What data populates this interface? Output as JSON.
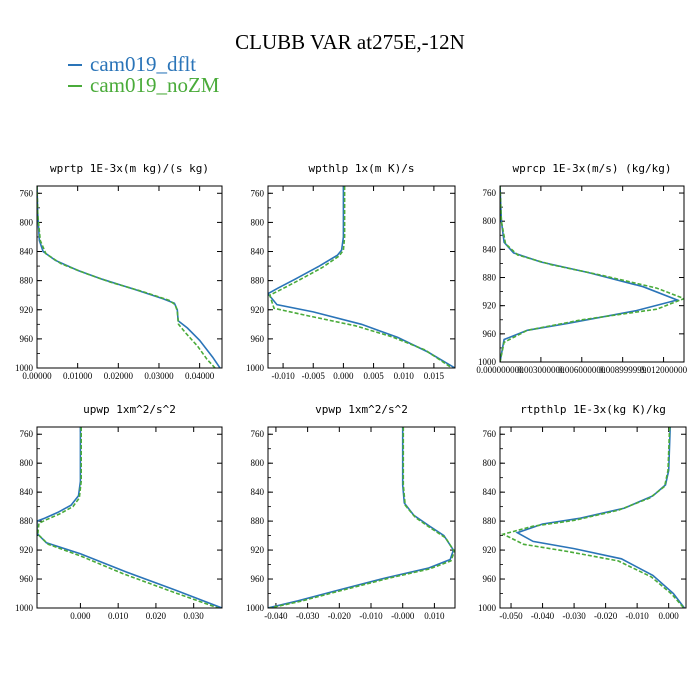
{
  "title": "CLUBB VAR at275E,-12N",
  "colors": {
    "dflt": "#2a74b8",
    "noZM": "#4aab3a"
  },
  "legend": [
    {
      "label": "cam019_dflt",
      "color": "#2a74b8"
    },
    {
      "label": "cam019_noZM",
      "color": "#4aab3a"
    }
  ],
  "chart_data": [
    {
      "type": "line",
      "title": "wprtp  1E-3x(m kg)/(s kg)",
      "xlim": [
        0,
        0.0455
      ],
      "ylim": [
        1000,
        750
      ],
      "yticks": [
        760,
        800,
        840,
        880,
        920,
        960,
        1000
      ],
      "xticks": [
        0,
        0.01,
        0.02,
        0.03,
        0.04
      ],
      "xticklabels": [
        "0.00000",
        "0.01000",
        "0.02000",
        "0.03000",
        "0.04000"
      ],
      "series": [
        {
          "name": "cam019_dflt",
          "style": "solid",
          "x": [
            0,
            0.0002,
            0.0006,
            0.0015,
            0.0045,
            0.01,
            0.016,
            0.024,
            0.031,
            0.0338,
            0.0345,
            0.0347,
            0.037,
            0.04,
            0.0432,
            0.045
          ],
          "y": [
            750,
            790,
            825,
            840,
            852,
            866,
            878,
            892,
            905,
            911,
            920,
            935,
            945,
            962,
            985,
            1000
          ]
        },
        {
          "name": "cam019_noZM",
          "style": "dashed",
          "x": [
            0,
            0.0002,
            0.0008,
            0.0022,
            0.006,
            0.012,
            0.018,
            0.026,
            0.0325,
            0.034,
            0.0345,
            0.0348,
            0.0366,
            0.0395,
            0.0418,
            0.0438
          ],
          "y": [
            750,
            790,
            825,
            843,
            857,
            870,
            882,
            895,
            907,
            913,
            922,
            940,
            952,
            970,
            988,
            1000
          ]
        }
      ]
    },
    {
      "type": "line",
      "title": "wpthlp  1x(m K)/s",
      "xlim": [
        -0.0125,
        0.0185
      ],
      "ylim": [
        1000,
        750
      ],
      "yticks": [
        760,
        800,
        840,
        880,
        920,
        960,
        1000
      ],
      "xticks": [
        -0.01,
        -0.005,
        0,
        0.005,
        0.01,
        0.015
      ],
      "xticklabels": [
        "-0.010",
        "-0.005",
        "0.000",
        "0.005",
        "0.010",
        "0.015"
      ],
      "series": [
        {
          "name": "cam019_dflt",
          "style": "solid",
          "x": [
            0,
            0,
            -0.0003,
            -0.001,
            -0.004,
            -0.008,
            -0.0108,
            -0.0125,
            -0.011,
            -0.005,
            0.003,
            0.009,
            0.014,
            0.0185
          ],
          "y": [
            750,
            820,
            838,
            845,
            860,
            878,
            890,
            898,
            913,
            923,
            940,
            958,
            978,
            1000
          ]
        },
        {
          "name": "cam019_noZM",
          "style": "dashed",
          "x": [
            0.0002,
            0.0002,
            0.0,
            -0.0007,
            -0.0035,
            -0.0075,
            -0.0103,
            -0.0122,
            -0.0115,
            -0.006,
            0.002,
            0.008,
            0.0135,
            0.018
          ],
          "y": [
            750,
            820,
            838,
            846,
            862,
            880,
            892,
            900,
            918,
            928,
            942,
            957,
            975,
            1000
          ]
        }
      ]
    },
    {
      "type": "line",
      "title": "wprcp  1E-3x(m/s) (kg/kg)",
      "xlim": [
        0,
        0.0135
      ],
      "ylim": [
        1000,
        750
      ],
      "yticks": [
        760,
        800,
        840,
        880,
        920,
        960,
        1000
      ],
      "xticks": [
        0,
        0.003,
        0.006,
        0.009,
        0.012
      ],
      "xticklabels": [
        "0.000000000",
        "0.003000000",
        "0.006000000",
        "0.008999999",
        "0.012000000"
      ],
      "series": [
        {
          "name": "cam019_dflt",
          "style": "solid",
          "x": [
            0,
            0.0001,
            0.0003,
            0.001,
            0.003,
            0.0065,
            0.0105,
            0.013,
            0.01,
            0.005,
            0.002,
            0.0003,
            0
          ],
          "y": [
            750,
            800,
            830,
            845,
            858,
            873,
            893,
            912,
            927,
            945,
            955,
            968,
            1000
          ]
        },
        {
          "name": "cam019_noZM",
          "style": "dashed",
          "x": [
            0,
            0.0001,
            0.0004,
            0.0013,
            0.0038,
            0.0075,
            0.0115,
            0.0135,
            0.0115,
            0.006,
            0.002,
            0.0003,
            0
          ],
          "y": [
            750,
            800,
            832,
            848,
            862,
            877,
            895,
            910,
            925,
            940,
            955,
            972,
            1000
          ]
        }
      ]
    },
    {
      "type": "line",
      "title": "upwp  1xm^2/s^2",
      "xlim": [
        -0.0115,
        0.0375
      ],
      "ylim": [
        1000,
        750
      ],
      "yticks": [
        760,
        800,
        840,
        880,
        920,
        960,
        1000
      ],
      "xticks": [
        0,
        0.01,
        0.02,
        0.03
      ],
      "xticklabels": [
        "0.000",
        "0.010",
        "0.020",
        "0.030"
      ],
      "series": [
        {
          "name": "cam019_dflt",
          "style": "solid",
          "x": [
            0,
            0,
            -0.0005,
            -0.0025,
            -0.006,
            -0.0095,
            -0.0115,
            -0.0115,
            -0.009,
            0.0,
            0.012,
            0.025,
            0.0375
          ],
          "y": [
            750,
            825,
            845,
            858,
            868,
            876,
            880,
            897,
            910,
            925,
            950,
            975,
            1000
          ]
        },
        {
          "name": "cam019_noZM",
          "style": "dashed",
          "x": [
            0.0002,
            0.0002,
            -0.0003,
            -0.002,
            -0.0055,
            -0.009,
            -0.011,
            -0.0113,
            -0.0085,
            0.0,
            0.0115,
            0.024,
            0.0365
          ],
          "y": [
            750,
            825,
            848,
            860,
            870,
            878,
            883,
            898,
            912,
            928,
            953,
            977,
            1000
          ]
        }
      ]
    },
    {
      "type": "line",
      "title": "vpwp  1xm^2/s^2",
      "xlim": [
        -0.0425,
        0.0165
      ],
      "ylim": [
        1000,
        750
      ],
      "yticks": [
        760,
        800,
        840,
        880,
        920,
        960,
        1000
      ],
      "xticks": [
        -0.04,
        -0.03,
        -0.02,
        -0.01,
        0,
        0.01
      ],
      "xticklabels": [
        "-0.040",
        "-0.030",
        "-0.020",
        "-0.010",
        "-0.000",
        "0.010"
      ],
      "series": [
        {
          "name": "cam019_dflt",
          "style": "solid",
          "x": [
            0,
            0,
            0.0005,
            0.0035,
            0.0085,
            0.013,
            0.016,
            0.015,
            0.008,
            -0.005,
            -0.02,
            -0.033,
            -0.0425
          ],
          "y": [
            750,
            830,
            855,
            872,
            887,
            900,
            920,
            933,
            945,
            958,
            975,
            990,
            1000
          ]
        },
        {
          "name": "cam019_noZM",
          "style": "dashed",
          "x": [
            0.0002,
            0.0002,
            0.0008,
            0.004,
            0.009,
            0.0135,
            0.0163,
            0.0152,
            0.0085,
            -0.0045,
            -0.0195,
            -0.0325,
            -0.042
          ],
          "y": [
            750,
            830,
            858,
            875,
            890,
            903,
            922,
            935,
            946,
            959,
            976,
            991,
            1000
          ]
        }
      ]
    },
    {
      "type": "line",
      "title": "rtpthlp  1E-3x(kg K)/kg",
      "xlim": [
        -0.0535,
        0.0055
      ],
      "ylim": [
        1000,
        750
      ],
      "yticks": [
        760,
        800,
        840,
        880,
        920,
        960,
        1000
      ],
      "xticks": [
        -0.05,
        -0.04,
        -0.03,
        -0.02,
        -0.01,
        0
      ],
      "xticklabels": [
        "-0.050",
        "-0.040",
        "-0.030",
        "-0.020",
        "-0.010",
        "0.000"
      ],
      "series": [
        {
          "name": "cam019_dflt",
          "style": "solid",
          "x": [
            0.0005,
            0.0,
            -0.001,
            -0.005,
            -0.014,
            -0.028,
            -0.04,
            -0.048,
            -0.043,
            -0.03,
            -0.015,
            -0.005,
            0.0015,
            0.005
          ],
          "y": [
            750,
            810,
            830,
            845,
            862,
            876,
            884,
            896,
            908,
            918,
            932,
            955,
            980,
            1000
          ]
        },
        {
          "name": "cam019_noZM",
          "style": "dashed",
          "x": [
            0.0003,
            -0.0002,
            -0.0013,
            -0.006,
            -0.016,
            -0.03,
            -0.043,
            -0.0525,
            -0.046,
            -0.032,
            -0.016,
            -0.0055,
            0.001,
            0.0048
          ],
          "y": [
            750,
            810,
            832,
            848,
            865,
            879,
            887,
            898,
            912,
            922,
            935,
            957,
            981,
            1000
          ]
        }
      ]
    }
  ]
}
